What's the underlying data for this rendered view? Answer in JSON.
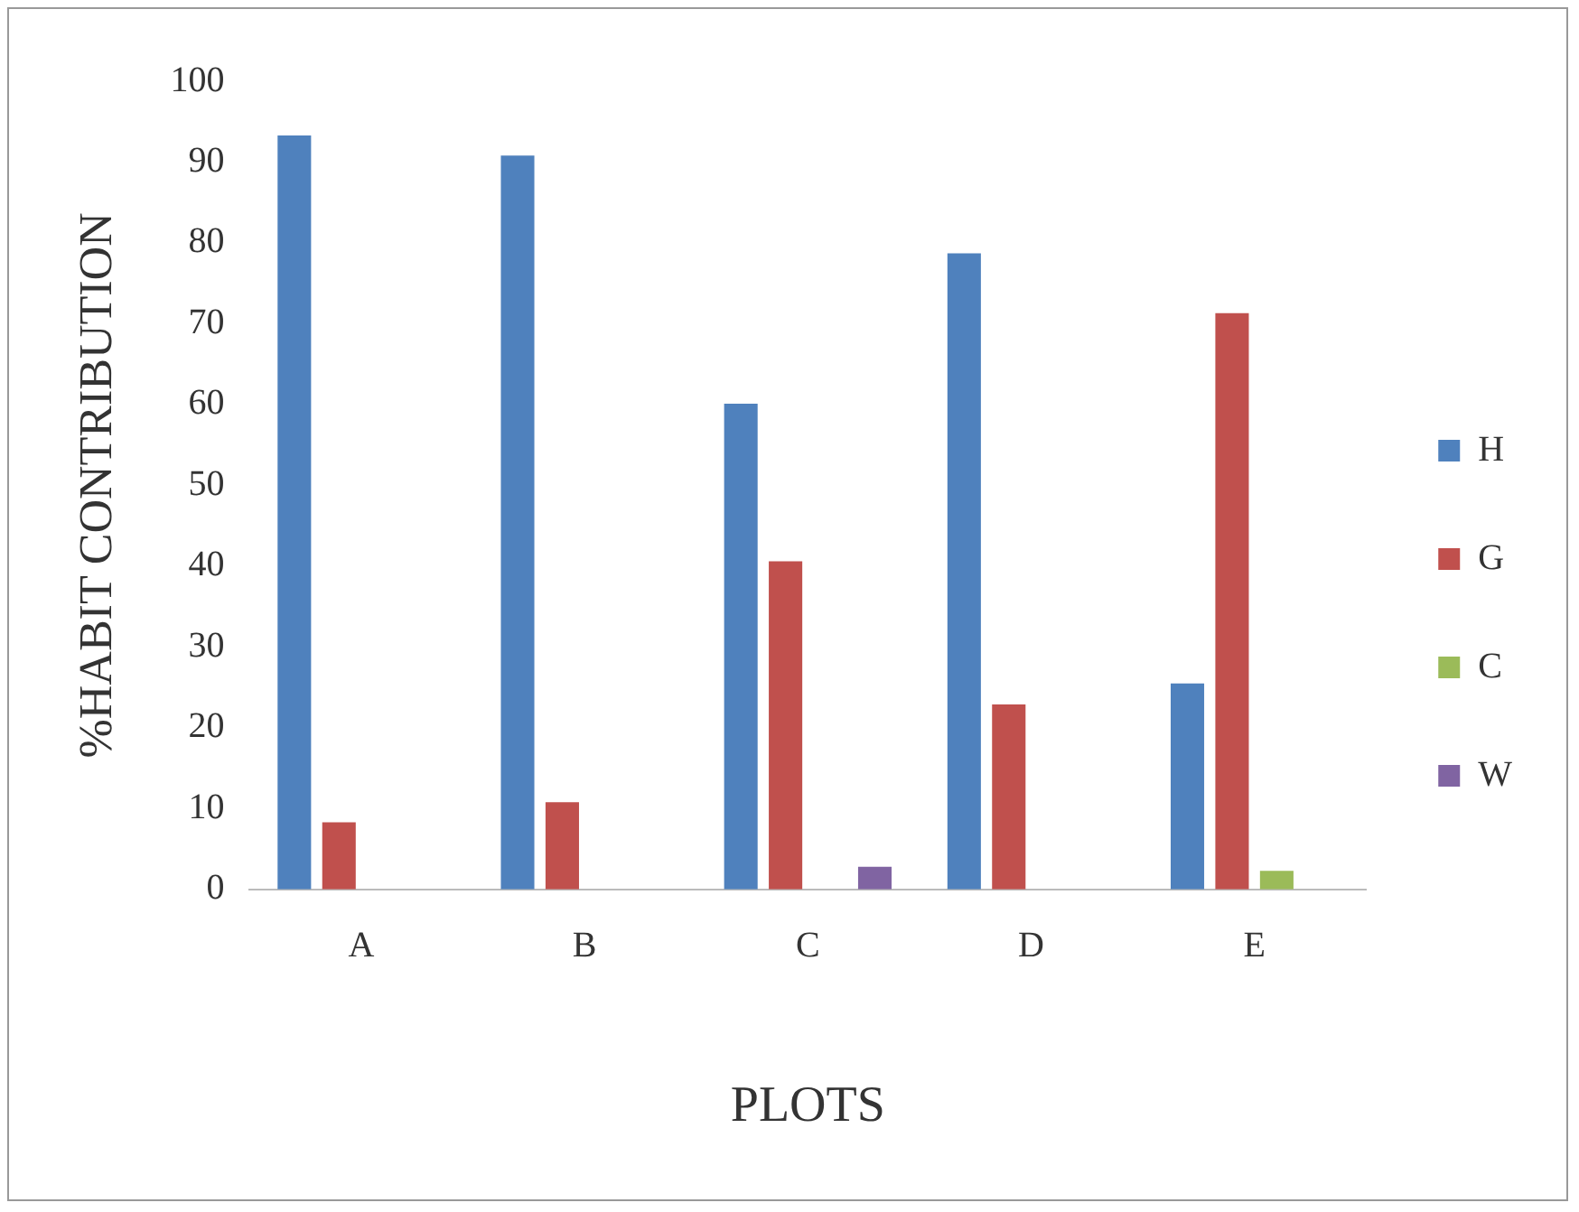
{
  "chart_data": {
    "type": "bar",
    "xlabel": "PLOTS",
    "ylabel": "%HABIT CONTRIBUTION",
    "categories": [
      "A",
      "B",
      "C",
      "D",
      "E"
    ],
    "series": [
      {
        "name": "H",
        "color": "#4f81bd",
        "values": [
          93.3,
          90.8,
          60.1,
          78.7,
          25.5
        ]
      },
      {
        "name": "G",
        "color": "#c0504d",
        "values": [
          8.3,
          10.8,
          40.6,
          22.9,
          71.3
        ]
      },
      {
        "name": "C",
        "color": "#9bbb59",
        "values": [
          0,
          0,
          0,
          0,
          2.3
        ]
      },
      {
        "name": "W",
        "color": "#8064a2",
        "values": [
          0,
          0,
          2.8,
          0,
          0
        ]
      }
    ],
    "ylim": [
      0,
      100
    ],
    "yticks": [
      0,
      10,
      20,
      30,
      40,
      50,
      60,
      70,
      80,
      90,
      100
    ],
    "grid": false,
    "legend": "right"
  }
}
